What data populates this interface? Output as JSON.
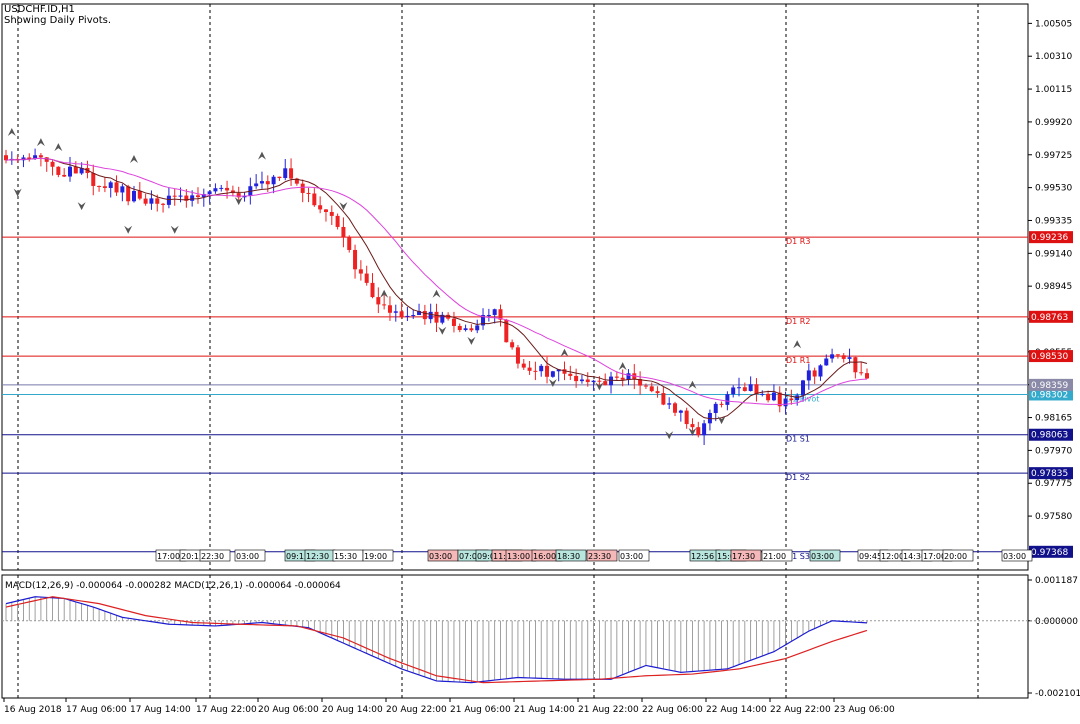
{
  "header": {
    "symbol_line": "USDCHF.ID,H1",
    "indicator_line": "Showing Daily Pivots."
  },
  "colors": {
    "bull": "#2222dd",
    "bear": "#ee2222",
    "ma_fast": "#6b1a1a",
    "ma_slow": "#dd44dd",
    "resistance": "#dd1111",
    "support": "#11118b",
    "pivot": "#33aacc",
    "macd_line": "#1c1cd0",
    "signal_line": "#dd2222"
  },
  "chart_data": [
    {
      "type": "candlestick",
      "title": "USDCHF.ID,H1",
      "ylim": [
        0.9726,
        1.0062
      ],
      "y_ticks": [
        "1.00505",
        "1.00310",
        "1.00115",
        "0.99920",
        "0.99725",
        "0.99530",
        "0.99335",
        "0.99140",
        "0.98945",
        "0.98750",
        "0.98555",
        "0.98360",
        "0.98165",
        "0.97970",
        "0.97775",
        "0.97580"
      ],
      "pivot_levels": [
        {
          "name": "D1 R3",
          "value": 0.99236,
          "label": "0.99236",
          "kind": "resistance"
        },
        {
          "name": "D1 R2",
          "value": 0.98763,
          "label": "0.98763",
          "kind": "resistance"
        },
        {
          "name": "D1 R1",
          "value": 0.9853,
          "label": "0.98530",
          "kind": "resistance"
        },
        {
          "name": "D1 Pivot",
          "value": 0.98302,
          "label": "0.98302",
          "kind": "pivot"
        },
        {
          "name": "D1 S1",
          "value": 0.98063,
          "label": "0.98063",
          "kind": "support"
        },
        {
          "name": "D1 S2",
          "value": 0.97835,
          "label": "0.97835",
          "kind": "support"
        },
        {
          "name": "D1 S3",
          "value": 0.97368,
          "label": "0.97368",
          "kind": "support"
        }
      ],
      "current_price": {
        "value": 0.98359,
        "label": "0.98359"
      },
      "anchors": [
        [
          0,
          0.9966
        ],
        [
          4,
          0.9972
        ],
        [
          8,
          0.9962
        ],
        [
          12,
          0.9965
        ],
        [
          16,
          0.9955
        ],
        [
          20,
          0.995
        ],
        [
          24,
          0.9945
        ],
        [
          28,
          0.9945
        ],
        [
          32,
          0.995
        ],
        [
          36,
          0.9952
        ],
        [
          40,
          0.995
        ],
        [
          44,
          0.9955
        ],
        [
          48,
          0.9965
        ],
        [
          52,
          0.995
        ],
        [
          56,
          0.9935
        ],
        [
          60,
          0.9905
        ],
        [
          64,
          0.988
        ],
        [
          68,
          0.988
        ],
        [
          72,
          0.9878
        ],
        [
          76,
          0.9873
        ],
        [
          80,
          0.987
        ],
        [
          84,
          0.988
        ],
        [
          88,
          0.985
        ],
        [
          92,
          0.9845
        ],
        [
          96,
          0.9842
        ],
        [
          100,
          0.9838
        ],
        [
          104,
          0.984
        ],
        [
          108,
          0.9842
        ],
        [
          112,
          0.983
        ],
        [
          116,
          0.9818
        ],
        [
          119,
          0.981
        ],
        [
          122,
          0.9822
        ],
        [
          126,
          0.9838
        ],
        [
          130,
          0.983
        ],
        [
          134,
          0.9825
        ],
        [
          138,
          0.9842
        ],
        [
          142,
          0.9853
        ],
        [
          145,
          0.985
        ],
        [
          148,
          0.984
        ]
      ],
      "candle_count": 149,
      "arrow_up_at": [
        [
          1,
          0.9986
        ],
        [
          6,
          0.998
        ],
        [
          9,
          0.9977
        ],
        [
          22,
          0.997
        ],
        [
          44,
          0.9972
        ],
        [
          65,
          0.989
        ],
        [
          74,
          0.989
        ],
        [
          96,
          0.9855
        ],
        [
          106,
          0.9847
        ],
        [
          118,
          0.9836
        ],
        [
          136,
          0.986
        ]
      ],
      "arrow_down_at": [
        [
          2,
          0.995
        ],
        [
          13,
          0.9942
        ],
        [
          21,
          0.9928
        ],
        [
          29,
          0.9928
        ],
        [
          40,
          0.9945
        ],
        [
          58,
          0.9942
        ],
        [
          75,
          0.9868
        ],
        [
          80,
          0.9862
        ],
        [
          94,
          0.9837
        ],
        [
          102,
          0.9835
        ],
        [
          114,
          0.9806
        ],
        [
          118,
          0.9808
        ],
        [
          123,
          0.9815
        ]
      ],
      "session_labels": [
        {
          "text": "17:00",
          "style": "plain"
        },
        {
          "text": "20:15",
          "style": "plain"
        },
        {
          "text": "22:30",
          "style": "plain"
        },
        {
          "text": "03:00",
          "style": "plain"
        },
        {
          "text": "09:15",
          "style": "teal"
        },
        {
          "text": "12:30",
          "style": "teal"
        },
        {
          "text": "15:30",
          "style": "plain"
        },
        {
          "text": "19:00",
          "style": "plain"
        },
        {
          "text": "03:00",
          "style": "red"
        },
        {
          "text": "07:00",
          "style": "teal"
        },
        {
          "text": "09:00",
          "style": "teal"
        },
        {
          "text": "11:00",
          "style": "red"
        },
        {
          "text": "13:00",
          "style": "red"
        },
        {
          "text": "16:00",
          "style": "red"
        },
        {
          "text": "18:30",
          "style": "teal"
        },
        {
          "text": "23:30",
          "style": "red"
        },
        {
          "text": "03:00",
          "style": "plain"
        },
        {
          "text": "12:56",
          "style": "teal"
        },
        {
          "text": "15:00",
          "style": "teal"
        },
        {
          "text": "17:30",
          "style": "red"
        },
        {
          "text": "21:00",
          "style": "plain"
        },
        {
          "text": "03:00",
          "style": "teal"
        },
        {
          "text": "09:45",
          "style": "plain"
        },
        {
          "text": "12:00",
          "style": "plain"
        },
        {
          "text": "14:30",
          "style": "plain"
        },
        {
          "text": "17:00",
          "style": "plain"
        },
        {
          "text": "20:00",
          "style": "plain"
        },
        {
          "text": "03:00",
          "style": "plain"
        }
      ]
    },
    {
      "type": "histogram_line",
      "title": "MACD(12,26,9) -0.000064 -0.000282 MACD(12,26,1) -0.000064 -0.000064",
      "ylim": [
        -0.002101,
        0.001187
      ],
      "y_ticks": [
        "0.001187",
        "0.000000",
        "-0.002101"
      ],
      "macd_anchors": [
        [
          0,
          0.0005
        ],
        [
          5,
          0.0007
        ],
        [
          10,
          0.00065
        ],
        [
          15,
          0.0004
        ],
        [
          20,
          0.0001
        ],
        [
          28,
          -0.0001
        ],
        [
          36,
          -0.00015
        ],
        [
          44,
          -5e-05
        ],
        [
          52,
          -0.0002
        ],
        [
          60,
          -0.0008
        ],
        [
          68,
          -0.0014
        ],
        [
          74,
          -0.00175
        ],
        [
          80,
          -0.0018
        ],
        [
          88,
          -0.00165
        ],
        [
          96,
          -0.0017
        ],
        [
          104,
          -0.0017
        ],
        [
          110,
          -0.0013
        ],
        [
          116,
          -0.0015
        ],
        [
          124,
          -0.0014
        ],
        [
          132,
          -0.0009
        ],
        [
          138,
          -0.0003
        ],
        [
          142,
          0.0
        ],
        [
          148,
          -6e-05
        ]
      ],
      "signal_anchors": [
        [
          0,
          0.0004
        ],
        [
          8,
          0.0007
        ],
        [
          16,
          0.0005
        ],
        [
          24,
          0.00015
        ],
        [
          32,
          -5e-05
        ],
        [
          40,
          -0.0001
        ],
        [
          50,
          -0.00015
        ],
        [
          58,
          -0.0005
        ],
        [
          66,
          -0.0011
        ],
        [
          74,
          -0.0016
        ],
        [
          82,
          -0.0018
        ],
        [
          92,
          -0.00175
        ],
        [
          102,
          -0.0017
        ],
        [
          110,
          -0.0016
        ],
        [
          118,
          -0.00155
        ],
        [
          126,
          -0.0014
        ],
        [
          134,
          -0.0011
        ],
        [
          142,
          -0.0006
        ],
        [
          148,
          -0.00028
        ]
      ],
      "x_labels": [
        "16 Aug 2018",
        "17 Aug 06:00",
        "17 Aug 14:00",
        "17 Aug 22:00",
        "20 Aug 06:00",
        "20 Aug 14:00",
        "20 Aug 22:00",
        "21 Aug 06:00",
        "21 Aug 14:00",
        "21 Aug 22:00",
        "22 Aug 06:00",
        "22 Aug 14:00",
        "22 Aug 22:00",
        "23 Aug 06:00"
      ]
    }
  ]
}
